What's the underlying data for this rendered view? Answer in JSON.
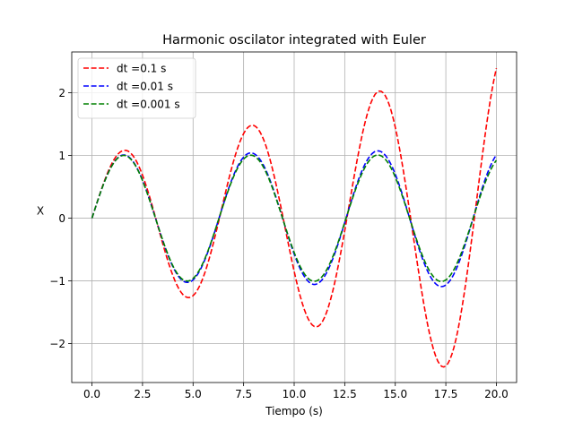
{
  "chart_data": {
    "type": "line",
    "title": "Harmonic oscilator integrated with Euler",
    "xlabel": "Tiempo (s)",
    "ylabel": "X",
    "xlim": [
      -1.0,
      21.0
    ],
    "ylim": [
      -2.62,
      2.65
    ],
    "xticks": [
      0.0,
      2.5,
      5.0,
      7.5,
      10.0,
      12.5,
      15.0,
      17.5,
      20.0
    ],
    "xtick_labels": [
      "0.0",
      "2.5",
      "5.0",
      "7.5",
      "10.0",
      "12.5",
      "15.0",
      "17.5",
      "20.0"
    ],
    "yticks": [
      -2,
      -1,
      0,
      1,
      2
    ],
    "ytick_labels": [
      "−2",
      "−1",
      "0",
      "1",
      "2"
    ],
    "grid": true,
    "legend_position": "top-left",
    "x_range": [
      0.0,
      20.0
    ],
    "series": [
      {
        "name": "dt =0.1 s",
        "color": "#ff0000",
        "dt": 0.1,
        "style": "dashed"
      },
      {
        "name": "dt =0.01 s",
        "color": "#0000ff",
        "dt": 0.01,
        "style": "dashed"
      },
      {
        "name": "dt =0.001 s",
        "color": "#008000",
        "dt": 0.001,
        "style": "dashed"
      }
    ]
  }
}
